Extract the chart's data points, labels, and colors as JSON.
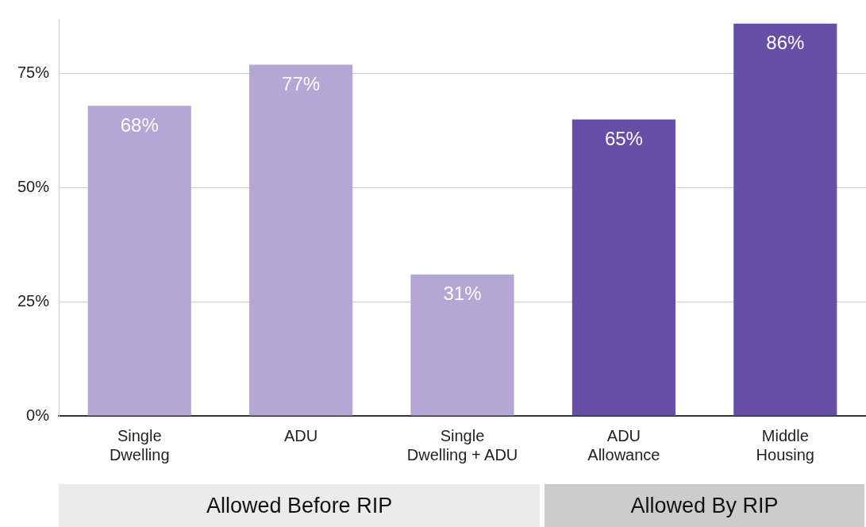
{
  "chart_data": {
    "type": "bar",
    "categories": [
      "Single Dwelling",
      "ADU",
      "Single Dwelling + ADU",
      "ADU Allowance",
      "Middle Housing"
    ],
    "values": [
      68,
      77,
      31,
      65,
      86
    ],
    "colors": [
      "#b4a7d6",
      "#b4a7d6",
      "#b4a7d6",
      "#674ea7",
      "#674ea7"
    ],
    "value_labels": [
      "68%",
      "77%",
      "31%",
      "65%",
      "86%"
    ],
    "ylim": [
      0,
      87
    ],
    "yticks": [
      {
        "value": 0,
        "label": "0%"
      },
      {
        "value": 25,
        "label": "25%"
      },
      {
        "value": 50,
        "label": "50%"
      },
      {
        "value": 75,
        "label": "75%"
      }
    ],
    "grid": "y",
    "legend": false,
    "annotations": [
      "Allowed Before RIP",
      "Allowed By RIP"
    ]
  }
}
